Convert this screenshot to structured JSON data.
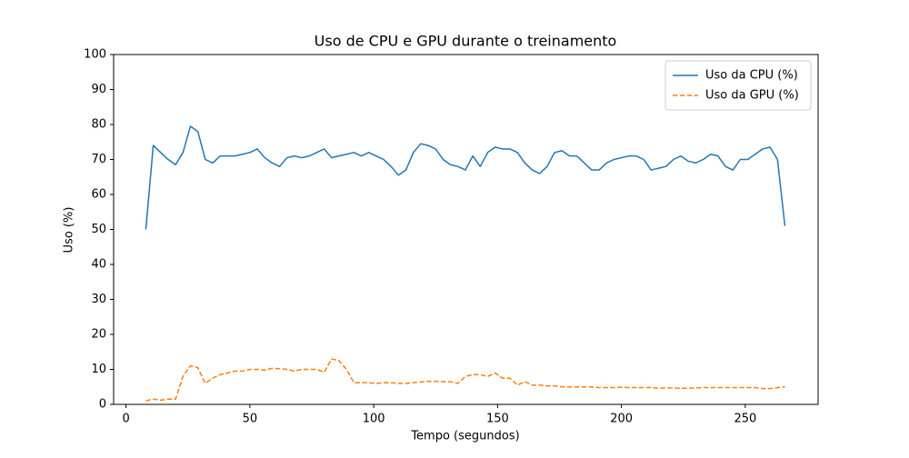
{
  "chart_data": {
    "type": "line",
    "title": "Uso de CPU e GPU durante o treinamento",
    "xlabel": "Tempo (segundos)",
    "ylabel": "Uso (%)",
    "x": [
      8,
      11,
      14,
      17,
      20,
      23,
      26,
      29,
      32,
      35,
      38,
      41,
      44,
      47,
      50,
      53,
      56,
      59,
      62,
      65,
      68,
      71,
      74,
      77,
      80,
      83,
      86,
      89,
      92,
      95,
      98,
      101,
      104,
      107,
      110,
      113,
      116,
      119,
      122,
      125,
      128,
      131,
      134,
      137,
      140,
      143,
      146,
      149,
      152,
      155,
      158,
      161,
      164,
      167,
      170,
      173,
      176,
      179,
      182,
      185,
      188,
      191,
      194,
      197,
      200,
      203,
      206,
      209,
      212,
      215,
      218,
      221,
      224,
      227,
      230,
      233,
      236,
      239,
      242,
      245,
      248,
      251,
      254,
      257,
      260,
      263,
      266
    ],
    "series": [
      {
        "name": "Uso da CPU (%)",
        "color": "#1f77b4",
        "dash": false,
        "values": [
          50,
          74,
          72,
          70,
          68.5,
          72,
          79.5,
          78,
          70,
          69,
          71,
          71,
          71,
          71.5,
          72,
          73,
          70.5,
          69,
          68,
          70.5,
          71,
          70.5,
          71,
          72,
          73,
          70.5,
          71,
          71.5,
          72,
          71,
          72,
          71,
          70,
          68,
          65.5,
          67,
          72,
          74.5,
          74,
          73,
          70,
          68.5,
          68,
          67,
          71,
          68,
          72,
          73.5,
          73,
          73,
          72,
          69,
          67,
          66,
          68,
          72,
          72.5,
          71,
          71,
          69,
          67,
          67,
          69,
          70,
          70.5,
          71,
          71,
          70,
          67,
          67.5,
          68,
          70,
          71,
          69.5,
          69,
          70,
          71.5,
          71,
          68,
          67,
          70,
          70,
          71.5,
          73,
          73.5,
          70,
          51
        ]
      },
      {
        "name": "Uso da GPU (%)",
        "color": "#ff7f0e",
        "dash": true,
        "values": [
          1,
          1.5,
          1.2,
          1.5,
          1.5,
          8,
          11,
          10.5,
          6,
          7.5,
          8.5,
          9,
          9.5,
          9.5,
          10,
          10,
          9.8,
          10.3,
          10.2,
          10,
          9.5,
          10,
          10,
          10,
          9.2,
          13,
          12.5,
          10,
          6.2,
          6.2,
          6.2,
          6,
          6.2,
          6.2,
          6,
          6,
          6.2,
          6.4,
          6.6,
          6.6,
          6.5,
          6.5,
          6,
          8,
          8.5,
          8.5,
          8,
          9,
          7.5,
          7.5,
          5.5,
          6.5,
          5.5,
          5.5,
          5.3,
          5.3,
          5,
          5,
          5,
          5,
          5,
          4.8,
          4.8,
          4.8,
          4.9,
          4.8,
          4.8,
          4.8,
          4.8,
          4.6,
          4.7,
          4.7,
          4.6,
          4.6,
          4.7,
          4.8,
          4.8,
          4.8,
          4.8,
          4.8,
          4.8,
          4.8,
          4.8,
          4.5,
          4.5,
          4.8,
          5
        ]
      }
    ],
    "xlim": [
      -5,
      279.4
    ],
    "ylim": [
      0,
      100
    ],
    "xticks": [
      0,
      50,
      100,
      150,
      200,
      250
    ],
    "yticks": [
      0,
      10,
      20,
      30,
      40,
      50,
      60,
      70,
      80,
      90,
      100
    ],
    "legend": "upper right",
    "grid": false
  }
}
